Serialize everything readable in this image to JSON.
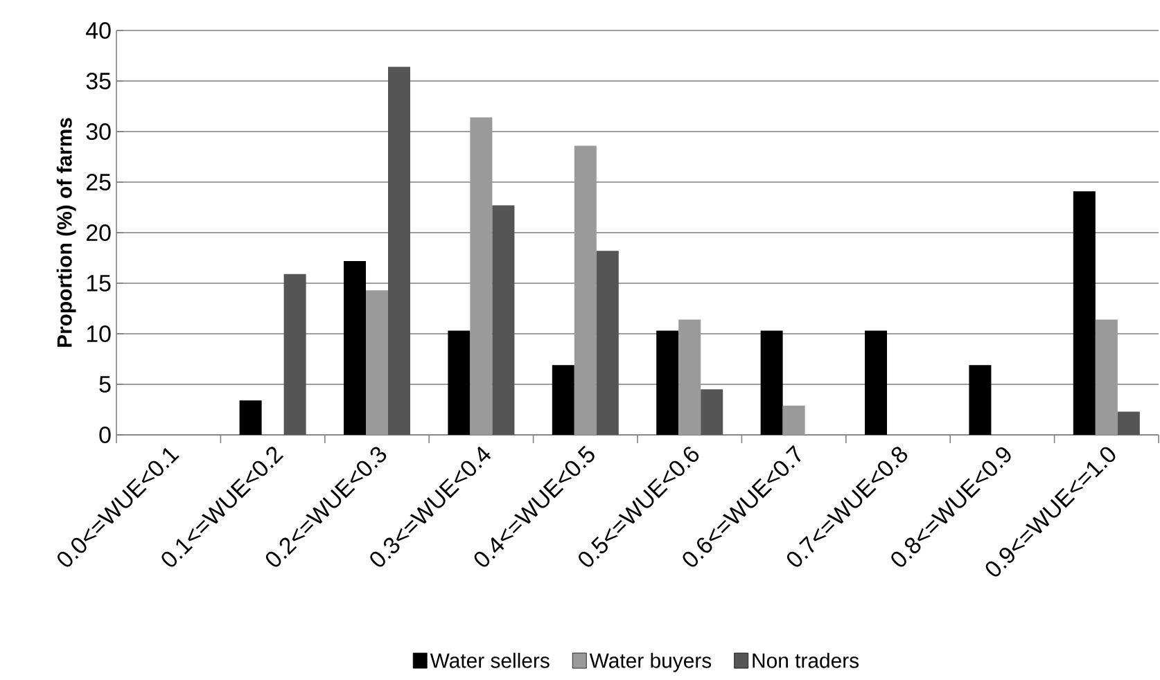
{
  "chart_data": {
    "type": "bar",
    "ylabel": "Proportion (%) of farms",
    "categories": [
      "0.0<=WUE<0.1",
      "0.1<=WUE<0.2",
      "0.2<=WUE<0.3",
      "0.3<=WUE<0.4",
      "0.4<=WUE<0.5",
      "0.5<=WUE<0.6",
      "0.6<=WUE<0.7",
      "0.7<=WUE<0.8",
      "0.8<=WUE<0.9",
      "0.9<=WUE<=1.0"
    ],
    "series": [
      {
        "name": "Water sellers",
        "color": "#000000",
        "values": [
          0,
          3.4,
          17.2,
          10.3,
          6.9,
          10.3,
          10.3,
          10.3,
          6.9,
          24.1
        ]
      },
      {
        "name": "Water buyers",
        "color": "#9a9a9a",
        "values": [
          0,
          0,
          14.3,
          31.4,
          28.6,
          11.4,
          2.9,
          0,
          0,
          11.4
        ]
      },
      {
        "name": "Non traders",
        "color": "#555555",
        "values": [
          0,
          15.9,
          36.4,
          22.7,
          18.2,
          4.5,
          0,
          0,
          0,
          2.3
        ]
      }
    ],
    "ylim": [
      0,
      40
    ],
    "yticks": [
      0,
      5,
      10,
      15,
      20,
      25,
      30,
      35,
      40
    ],
    "grid": "y",
    "legend": "bottom"
  }
}
